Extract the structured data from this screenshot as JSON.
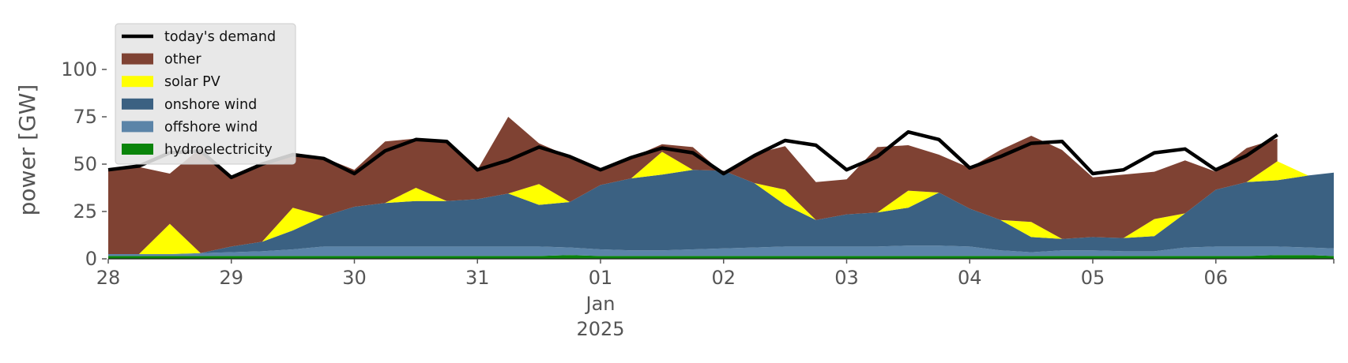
{
  "chart_data": {
    "type": "area",
    "title": "",
    "xlabel": "",
    "ylabel": "power [GW]",
    "ylim": [
      0,
      120
    ],
    "yticks": [
      0,
      25,
      50,
      75,
      100
    ],
    "x_range": [
      "2024-12-28T00:00",
      "2025-01-06T23:00"
    ],
    "xticks": [
      {
        "x": "2024-12-28",
        "label": "28",
        "sub": []
      },
      {
        "x": "2024-12-29",
        "label": "29",
        "sub": []
      },
      {
        "x": "2024-12-30",
        "label": "30",
        "sub": []
      },
      {
        "x": "2024-12-31",
        "label": "31",
        "sub": []
      },
      {
        "x": "2025-01-01",
        "label": "01",
        "sub": [
          "Jan",
          "2025"
        ]
      },
      {
        "x": "2025-01-02",
        "label": "02",
        "sub": []
      },
      {
        "x": "2025-01-03",
        "label": "03",
        "sub": []
      },
      {
        "x": "2025-01-04",
        "label": "04",
        "sub": []
      },
      {
        "x": "2025-01-05",
        "label": "05",
        "sub": []
      },
      {
        "x": "2025-01-06",
        "label": "06",
        "sub": []
      }
    ],
    "grid": false,
    "legend_position": "top-left",
    "colors": {
      "other": "#7f4233",
      "solar PV": "#ffff00",
      "onshore wind": "#3b6182",
      "offshore wind": "#5b84a8",
      "hydroelectricity": "#0a840a",
      "today's demand": "#000000"
    },
    "x": [
      "2024-12-28T00:00",
      "2024-12-28T06:00",
      "2024-12-28T12:00",
      "2024-12-28T18:00",
      "2024-12-29T00:00",
      "2024-12-29T06:00",
      "2024-12-29T12:00",
      "2024-12-29T18:00",
      "2024-12-30T00:00",
      "2024-12-30T06:00",
      "2024-12-30T12:00",
      "2024-12-30T18:00",
      "2024-12-31T00:00",
      "2024-12-31T06:00",
      "2024-12-31T12:00",
      "2024-12-31T18:00",
      "2025-01-01T00:00",
      "2025-01-01T06:00",
      "2025-01-01T12:00",
      "2025-01-01T18:00",
      "2025-01-02T00:00",
      "2025-01-02T06:00",
      "2025-01-02T12:00",
      "2025-01-02T18:00",
      "2025-01-03T00:00",
      "2025-01-03T06:00",
      "2025-01-03T12:00",
      "2025-01-03T18:00",
      "2025-01-04T00:00",
      "2025-01-04T06:00",
      "2025-01-04T12:00",
      "2025-01-04T18:00",
      "2025-01-05T00:00",
      "2025-01-05T06:00",
      "2025-01-05T12:00",
      "2025-01-05T18:00",
      "2025-01-06T00:00",
      "2025-01-06T06:00",
      "2025-01-06T12:00",
      "2025-01-06T18:00",
      "2025-01-06T23:00"
    ],
    "series": [
      {
        "name": "hydroelectricity",
        "values": [
          1.5,
          1.5,
          1.5,
          1.5,
          1.5,
          1.5,
          1.5,
          1.5,
          1.5,
          1.5,
          1.5,
          1.5,
          1.5,
          1.5,
          1.5,
          2,
          1.5,
          1.5,
          1.5,
          1.5,
          1.5,
          1.5,
          1.5,
          1.5,
          1.5,
          1.5,
          1.5,
          1.5,
          1.5,
          1.5,
          1.5,
          1.5,
          1.5,
          1.5,
          1.5,
          1.5,
          1.5,
          1.5,
          2,
          2,
          1.5
        ]
      },
      {
        "name": "offshore wind",
        "values": [
          1,
          1,
          1,
          1.5,
          2,
          2.5,
          3.5,
          5,
          5,
          5,
          5,
          5,
          5,
          5,
          5,
          4,
          3.5,
          3,
          3,
          3.5,
          4,
          4.5,
          5,
          5,
          5,
          5,
          5.5,
          5.5,
          5,
          3,
          2,
          3,
          3,
          2.5,
          2.5,
          4.5,
          5,
          5,
          4.5,
          4,
          4
        ]
      },
      {
        "name": "onshore wind",
        "values": [
          0,
          0,
          0,
          0,
          3,
          5,
          10,
          16,
          21,
          23,
          24,
          24,
          25,
          28,
          22,
          24,
          34,
          38,
          40,
          42,
          41,
          34,
          22,
          14,
          17,
          18,
          20,
          28,
          20,
          16,
          8,
          6,
          7,
          7,
          8,
          18,
          30,
          34,
          35,
          38,
          40
        ]
      },
      {
        "name": "solar PV",
        "values": [
          0,
          0,
          16,
          0,
          0,
          0,
          12,
          0,
          0,
          0,
          7,
          0,
          0,
          0,
          11,
          0,
          0,
          0,
          12,
          0,
          0,
          0,
          8,
          0,
          0,
          0,
          9,
          0,
          0,
          0,
          8,
          0,
          0,
          0,
          9,
          0,
          0,
          0,
          10,
          0,
          0
        ]
      },
      {
        "name": "other",
        "values": [
          44.5,
          46,
          26.5,
          55.5,
          36.5,
          42,
          29,
          31,
          19.5,
          32.5,
          26,
          31.5,
          15.5,
          40.5,
          21.5,
          24,
          8,
          11,
          4,
          12,
          -1.5,
          15.5,
          23,
          20,
          18.5,
          34.5,
          24,
          20,
          21.5,
          37,
          45.5,
          47,
          31.5,
          33.5,
          25,
          28,
          9.5,
          18,
          12,
          null,
          null
        ]
      },
      {
        "name": "today's demand",
        "values": [
          47,
          49,
          56,
          57,
          43,
          50,
          55,
          53,
          45,
          57,
          63,
          62,
          47,
          52,
          59,
          54,
          47,
          53.5,
          58.5,
          56,
          45,
          54.5,
          62.5,
          60,
          47,
          54,
          67,
          63,
          48,
          54,
          61,
          62,
          45,
          47,
          56,
          58,
          47,
          54.5,
          65.5,
          null,
          null
        ]
      }
    ]
  }
}
